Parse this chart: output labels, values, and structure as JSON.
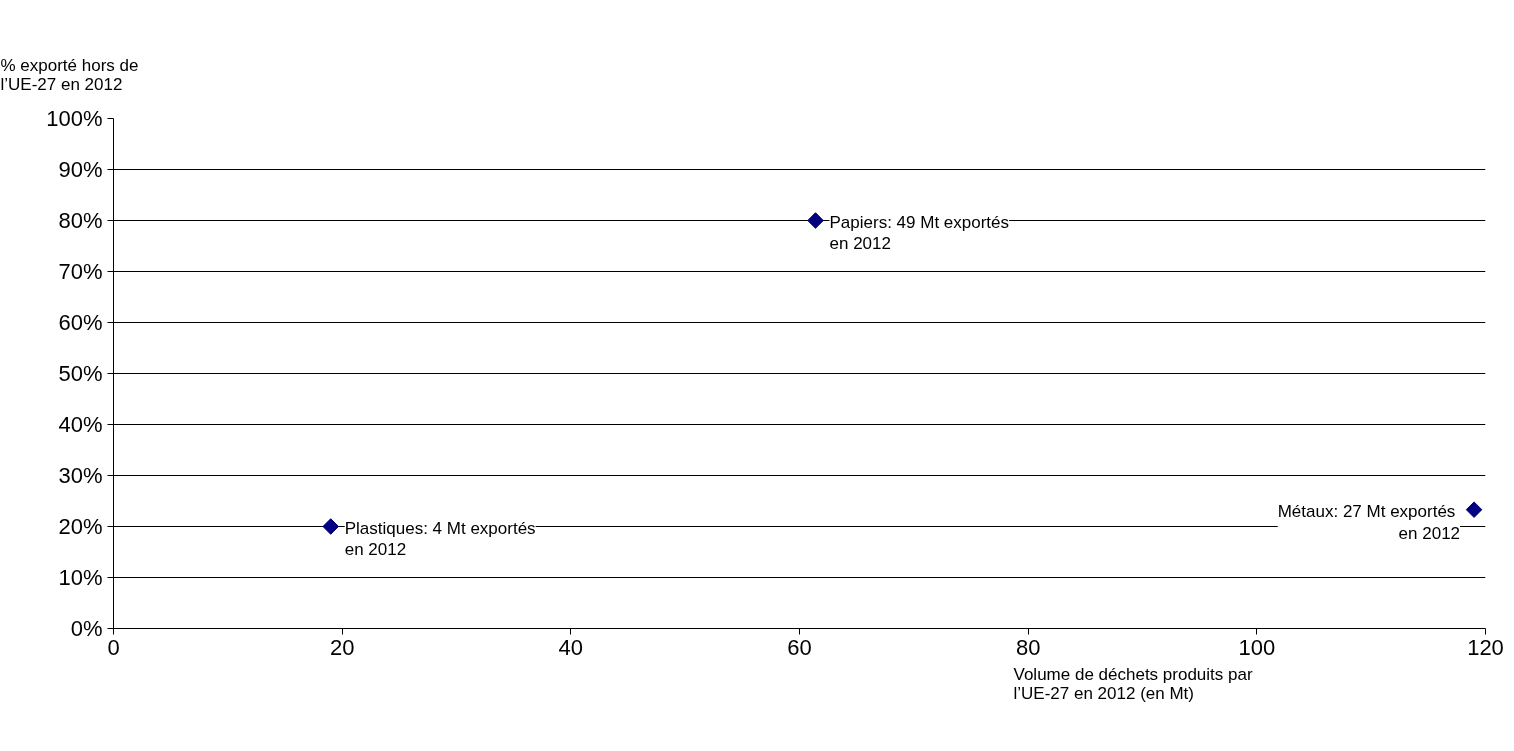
{
  "chart_data": {
    "type": "scatter",
    "xlabel": "Volume de déchets produits par\nl’UE-27 en 2012 (en Mt)",
    "ylabel": "% exporté hors de\nl’UE-27 en 2012",
    "series": [
      {
        "color": "#000080",
        "x": [
          19.0,
          61.4,
          119.0
        ],
        "values": [
          20,
          80,
          23.3
        ]
      }
    ],
    "annotations": [
      {
        "text": "Plastiques: 4 Mt exportés\nen 2012",
        "x": 19.0,
        "y": 20
      },
      {
        "text": "Papiers: 49 Mt exportés\nen 2012",
        "x": 61.4,
        "y": 80
      },
      {
        "text": "Métaux:  27 Mt exportés\nen 2012",
        "x": 119.0,
        "y": 23.3
      }
    ],
    "xlim": [
      0,
      120
    ],
    "xticks": [
      0,
      20,
      40,
      60,
      80,
      100,
      120
    ],
    "ylim": [
      0,
      100
    ],
    "yticks": [
      {
        "value": 0,
        "label": "0%"
      },
      {
        "value": 10,
        "label": "10%"
      },
      {
        "value": 20,
        "label": "20%"
      },
      {
        "value": 30,
        "label": "30%"
      },
      {
        "value": 40,
        "label": "40%"
      },
      {
        "value": 50,
        "label": "50%"
      },
      {
        "value": 60,
        "label": "60%"
      },
      {
        "value": 70,
        "label": "70%"
      },
      {
        "value": 80,
        "label": "80%"
      },
      {
        "value": 90,
        "label": "90%"
      },
      {
        "value": 100,
        "label": "100%"
      }
    ],
    "grid": "y",
    "marker": "diamond"
  }
}
